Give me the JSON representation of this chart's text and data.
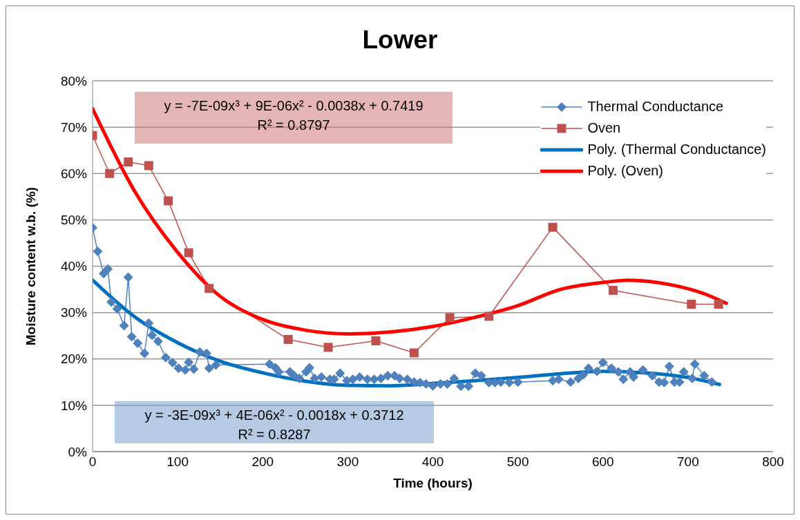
{
  "chart_data": {
    "type": "line",
    "title": "Lower",
    "xlabel": "Time (hours)",
    "ylabel": "Moisture content w.b. (%)",
    "xlim": [
      0,
      800
    ],
    "xticks": [
      0,
      100,
      200,
      300,
      400,
      500,
      600,
      700,
      800
    ],
    "ylim": [
      0,
      0.8
    ],
    "yticks": [
      {
        "value": 0,
        "label": "0%"
      },
      {
        "value": 0.1,
        "label": "10%"
      },
      {
        "value": 0.2,
        "label": "20%"
      },
      {
        "value": 0.3,
        "label": "30%"
      },
      {
        "value": 0.4,
        "label": "40%"
      },
      {
        "value": 0.5,
        "label": "50%"
      },
      {
        "value": 0.6,
        "label": "60%"
      },
      {
        "value": 0.7,
        "label": "70%"
      },
      {
        "value": 0.8,
        "label": "80%"
      }
    ],
    "grid": "y",
    "legend": "top right",
    "series": [
      {
        "name": "Thermal Conductance",
        "color": "#4f81bd",
        "marker": "diamond",
        "x": [
          0,
          6,
          13,
          18,
          22,
          29,
          37,
          42,
          46,
          53,
          61,
          66,
          70,
          77,
          86,
          94,
          101,
          109,
          113,
          119,
          126,
          134,
          137,
          145,
          208,
          215,
          219,
          232,
          237,
          243,
          251,
          255,
          261,
          269,
          279,
          284,
          291,
          299,
          306,
          314,
          323,
          331,
          339,
          347,
          355,
          361,
          370,
          378,
          385,
          392,
          400,
          409,
          417,
          425,
          433,
          442,
          450,
          457,
          466,
          473,
          480,
          490,
          500,
          541,
          548,
          562,
          571,
          577,
          583,
          593,
          600,
          610,
          618,
          624,
          632,
          636,
          647,
          658,
          666,
          672,
          678,
          684,
          690,
          695,
          705,
          708,
          719,
          728
        ],
        "values": [
          0.483,
          0.432,
          0.384,
          0.394,
          0.323,
          0.308,
          0.272,
          0.376,
          0.248,
          0.234,
          0.212,
          0.277,
          0.251,
          0.238,
          0.203,
          0.192,
          0.18,
          0.176,
          0.193,
          0.178,
          0.215,
          0.212,
          0.18,
          0.187,
          0.189,
          0.181,
          0.172,
          0.172,
          0.164,
          0.158,
          0.172,
          0.181,
          0.158,
          0.161,
          0.156,
          0.156,
          0.169,
          0.153,
          0.156,
          0.161,
          0.156,
          0.156,
          0.158,
          0.164,
          0.164,
          0.158,
          0.156,
          0.15,
          0.149,
          0.146,
          0.142,
          0.146,
          0.146,
          0.158,
          0.141,
          0.141,
          0.169,
          0.164,
          0.149,
          0.149,
          0.15,
          0.149,
          0.15,
          0.153,
          0.156,
          0.15,
          0.158,
          0.166,
          0.18,
          0.173,
          0.192,
          0.18,
          0.172,
          0.156,
          0.172,
          0.161,
          0.176,
          0.164,
          0.15,
          0.149,
          0.184,
          0.15,
          0.15,
          0.172,
          0.158,
          0.189,
          0.164,
          0.15
        ]
      },
      {
        "name": "Oven",
        "color": "#c0504d",
        "marker": "square",
        "x": [
          0,
          20,
          42,
          66,
          89,
          113,
          137,
          230,
          277,
          333,
          378,
          420,
          466,
          541,
          612,
          704,
          736
        ],
        "values": [
          0.682,
          0.6,
          0.625,
          0.617,
          0.541,
          0.429,
          0.352,
          0.242,
          0.225,
          0.239,
          0.213,
          0.289,
          0.292,
          0.484,
          0.348,
          0.318,
          0.318
        ]
      },
      {
        "name": "Poly. (Thermal Conductance)",
        "color": "#0070c0",
        "marker": "none",
        "x": [
          0,
          50,
          100,
          150,
          200,
          250,
          300,
          350,
          400,
          450,
          500,
          550,
          600,
          650,
          700,
          737
        ],
        "values": [
          0.37,
          0.29,
          0.235,
          0.195,
          0.17,
          0.152,
          0.143,
          0.142,
          0.147,
          0.153,
          0.16,
          0.168,
          0.173,
          0.17,
          0.16,
          0.145
        ]
      },
      {
        "name": "Poly. (Oven)",
        "color": "#ff0000",
        "marker": "none",
        "x": [
          0,
          50,
          100,
          150,
          200,
          250,
          300,
          350,
          400,
          450,
          500,
          550,
          600,
          630,
          680,
          720,
          745
        ],
        "values": [
          0.74,
          0.56,
          0.43,
          0.335,
          0.285,
          0.262,
          0.254,
          0.258,
          0.27,
          0.29,
          0.315,
          0.35,
          0.365,
          0.37,
          0.36,
          0.34,
          0.32
        ]
      }
    ],
    "annotations": [
      "y = -7E-09x³ + 9E-06x² - 0.0038x + 0.7419",
      "R² = 0.8797",
      "y = -3E-09x³ + 4E-06x² - 0.0018x + 0.3712",
      "R² = 0.8287"
    ]
  }
}
